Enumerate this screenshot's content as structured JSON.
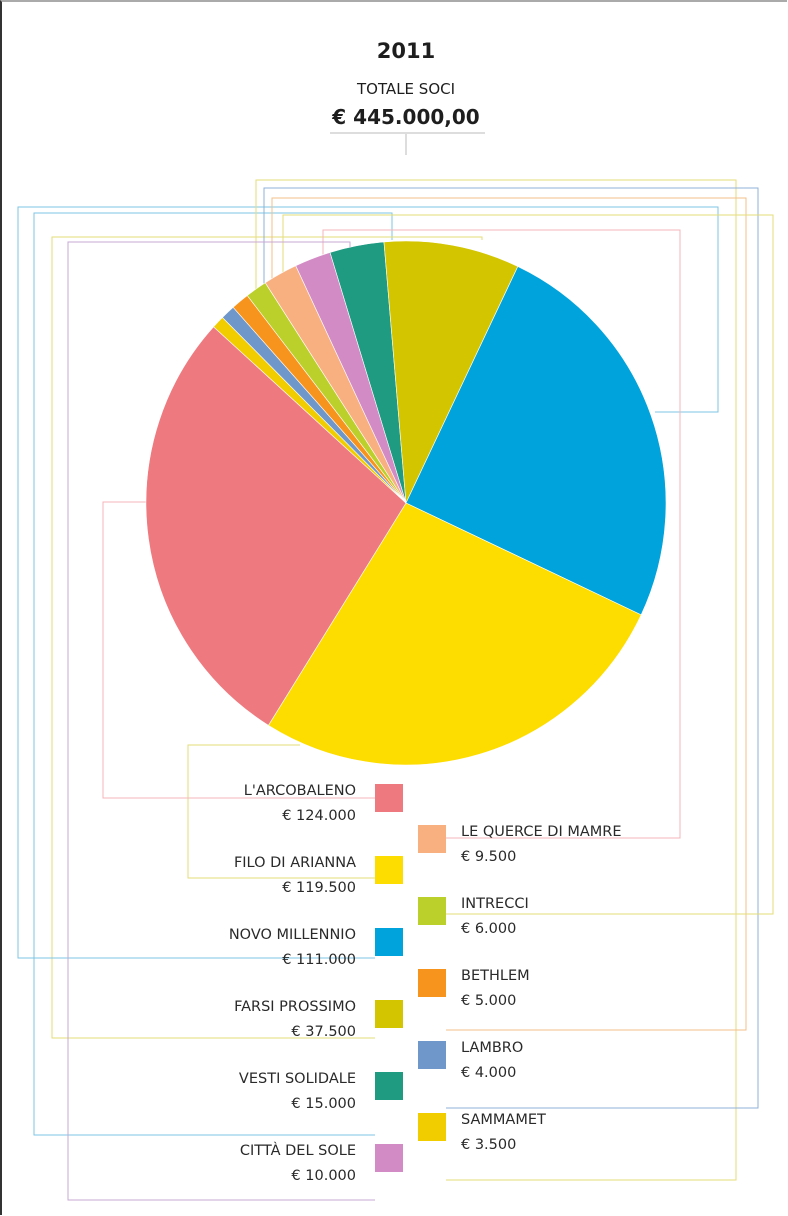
{
  "header": {
    "year": "2011",
    "subtitle": "TOTALE SOCI",
    "total": "€ 445.000,00"
  },
  "chart_data": {
    "type": "pie",
    "title": "2011",
    "subtitle": "TOTALE SOCI",
    "total_label": "€ 445.000,00",
    "total_value": 445000,
    "start_category": "VESTI SOLIDALE",
    "direction": "clockwise",
    "slices": [
      {
        "name": "VESTI SOLIDALE",
        "value_label": "€ 15.000",
        "value": 15000,
        "color": "#1f9b82"
      },
      {
        "name": "FARSI PROSSIMO",
        "value_label": "€ 37.500",
        "value": 37500,
        "color": "#d3c500"
      },
      {
        "name": "NOVO MILLENNIO",
        "value_label": "€ 111.000",
        "value": 111000,
        "color": "#00a3dc"
      },
      {
        "name": "FILO DI ARIANNA",
        "value_label": "€ 119.500",
        "value": 119500,
        "color": "#fddc00"
      },
      {
        "name": "L'ARCOBALENO",
        "value_label": "€ 124.000",
        "value": 124000,
        "color": "#ee7a80"
      },
      {
        "name": "SAMMAMET",
        "value_label": "€ 3.500",
        "value": 3500,
        "color": "#f1cd00"
      },
      {
        "name": "LAMBRO",
        "value_label": "€ 4.000",
        "value": 4000,
        "color": "#7097c9"
      },
      {
        "name": "BETHLEM",
        "value_label": "€ 5.000",
        "value": 5000,
        "color": "#f7941d"
      },
      {
        "name": "INTRECCI",
        "value_label": "€ 6.000",
        "value": 6000,
        "color": "#bcd02c"
      },
      {
        "name": "LE QUERCE DI MAMRE",
        "value_label": "€ 9.500",
        "value": 9500,
        "color": "#f9b081"
      },
      {
        "name": "CITTÀ DEL SOLE",
        "value_label": "€ 10.000",
        "value": 10000,
        "color": "#d38bc5"
      }
    ]
  }
}
